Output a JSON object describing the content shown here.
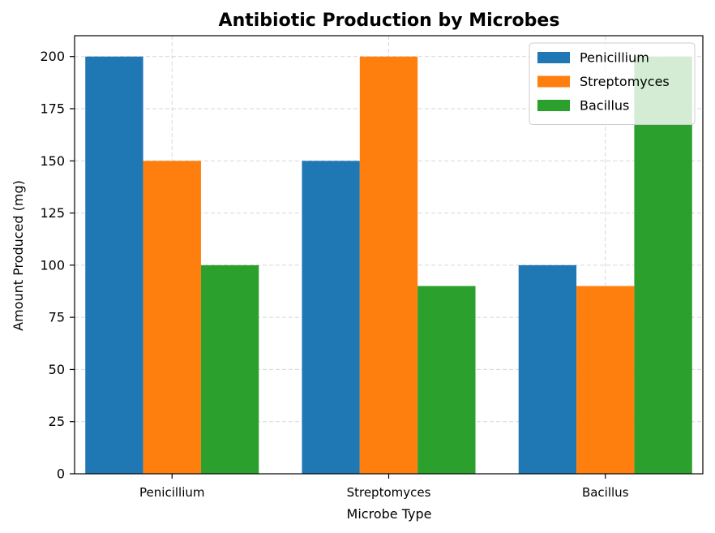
{
  "chart_data": {
    "type": "bar",
    "title": "Antibiotic Production by Microbes",
    "xlabel": "Microbe Type",
    "ylabel": "Amount Produced (mg)",
    "categories": [
      "Penicillium",
      "Streptomyces",
      "Bacillus"
    ],
    "series": [
      {
        "name": "Penicillium",
        "color": "#1f77b4",
        "values": [
          200,
          150,
          100
        ]
      },
      {
        "name": "Streptomyces",
        "color": "#ff7f0e",
        "values": [
          150,
          200,
          90
        ]
      },
      {
        "name": "Bacillus",
        "color": "#2ca02c",
        "values": [
          100,
          90,
          200
        ]
      }
    ],
    "ylim": [
      0,
      210
    ],
    "yticks": [
      0,
      25,
      50,
      75,
      100,
      125,
      150,
      175,
      200
    ],
    "grid": true,
    "legend_position": "top-right"
  }
}
